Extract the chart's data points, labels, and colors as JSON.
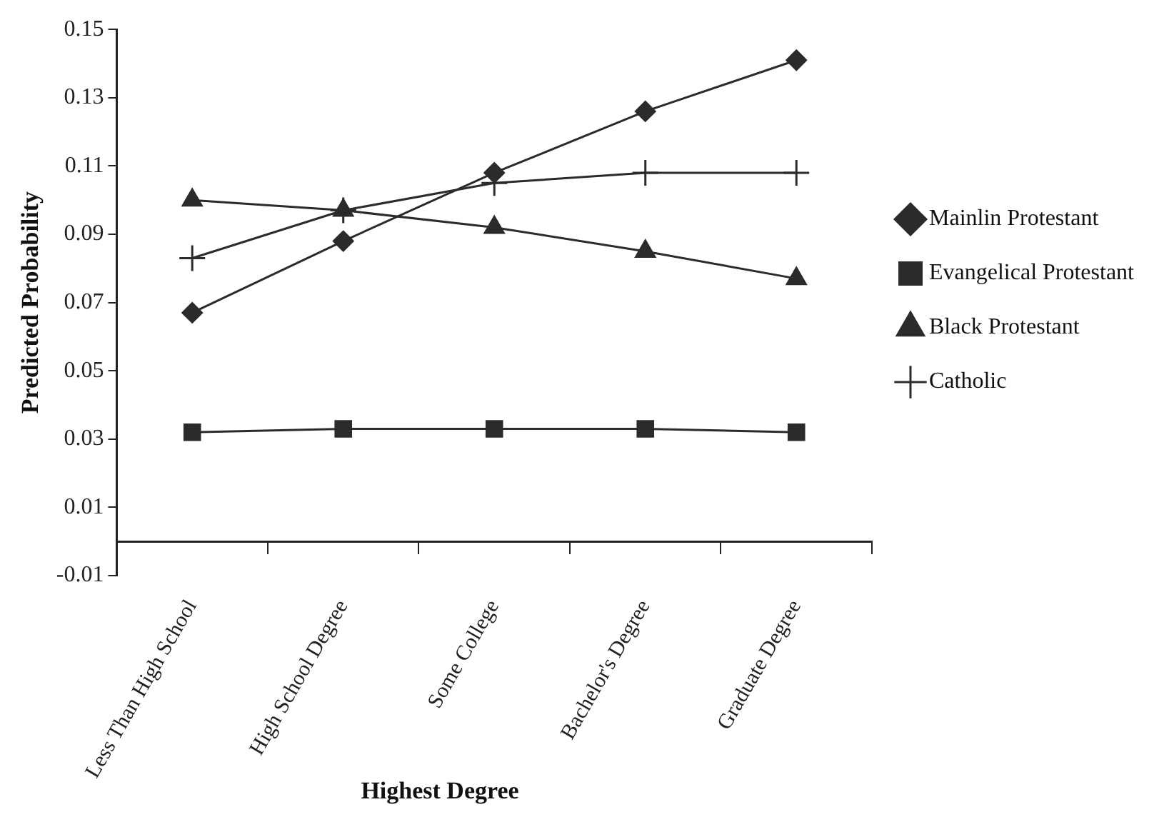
{
  "chart_data": {
    "type": "line",
    "categories": [
      "Less Than High School",
      "High School Degree",
      "Some College",
      "Bachelor's Degree",
      "Graduate Degree"
    ],
    "series": [
      {
        "name": "Mainlin Protestant",
        "color": "#2b2b2b",
        "marker": "diamond",
        "values": [
          0.067,
          0.088,
          0.108,
          0.126,
          0.141
        ]
      },
      {
        "name": "Evangelical Protestant",
        "color": "#2b2b2b",
        "marker": "square",
        "values": [
          0.032,
          0.033,
          0.033,
          0.033,
          0.032
        ]
      },
      {
        "name": "Black Protestant",
        "color": "#2b2b2b",
        "marker": "triangle",
        "values": [
          0.1,
          0.097,
          0.092,
          0.085,
          0.077
        ]
      },
      {
        "name": "Catholic",
        "color": "#2b2b2b",
        "marker": "cross",
        "values": [
          0.083,
          0.097,
          0.105,
          0.108,
          0.108
        ]
      }
    ],
    "xlabel": "Highest Degree",
    "ylabel": "Predicted Probability",
    "ylim": [
      -0.01,
      0.15
    ],
    "yticks": [
      -0.01,
      0.01,
      0.03,
      0.05,
      0.07,
      0.09,
      0.11,
      0.13,
      0.15
    ],
    "grid": false,
    "legend": "right",
    "line_style": "solid"
  }
}
